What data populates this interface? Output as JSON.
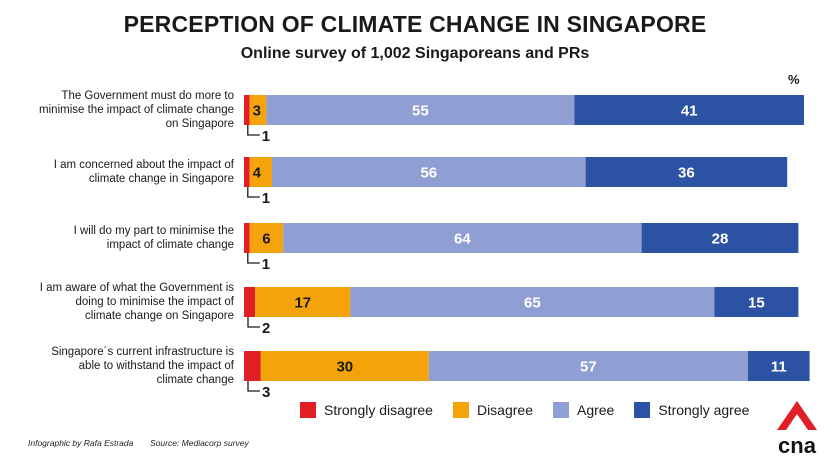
{
  "title": "PERCEPTION OF CLIMATE CHANGE IN SINGAPORE",
  "subtitle": "Online survey of 1,002 Singaporeans and PRs",
  "unit": "%",
  "colors": {
    "strongly_disagree": "#e01e25",
    "disagree": "#f5a30a",
    "agree": "#8f9fd3",
    "strongly_agree": "#2b52a3"
  },
  "chart_data": {
    "type": "bar",
    "orientation": "horizontal",
    "stacked": true,
    "categories": [
      "The Government must do more to minimise the impact of climate change on Singapore",
      "I am concerned about the impact of climate change in Singapore",
      "I will do my part to minimise the impact of climate change",
      "I am aware of what the Government is doing to minimise the impact of climate change on Singapore",
      "Singapore´s current infrastructure is able to withstand the impact of climate change"
    ],
    "category_lines": [
      [
        "The Government must do more to",
        "minimise the impact of climate change",
        "on Singapore"
      ],
      [
        "I am concerned about the impact of",
        "climate change in Singapore"
      ],
      [
        "I will do my part to minimise the",
        "impact of climate change"
      ],
      [
        "I am aware of what the Government is",
        "doing to minimise the impact of",
        "climate change on Singapore"
      ],
      [
        "Singapore´s current infrastructure is",
        "able to withstand the impact of",
        "climate change"
      ]
    ],
    "series": [
      {
        "name": "Strongly disagree",
        "values": [
          1,
          1,
          1,
          2,
          3
        ]
      },
      {
        "name": "Disagree",
        "values": [
          3,
          4,
          6,
          17,
          30
        ]
      },
      {
        "name": "Agree",
        "values": [
          55,
          56,
          64,
          65,
          57
        ]
      },
      {
        "name": "Strongly agree",
        "values": [
          41,
          36,
          28,
          15,
          11
        ]
      }
    ],
    "xlim": [
      0,
      100
    ],
    "legend_position": "bottom"
  },
  "footer": {
    "credit": "Infographic by Rafa Estrada",
    "source": "Source: Mediacorp survey"
  },
  "logo_text": "cna"
}
